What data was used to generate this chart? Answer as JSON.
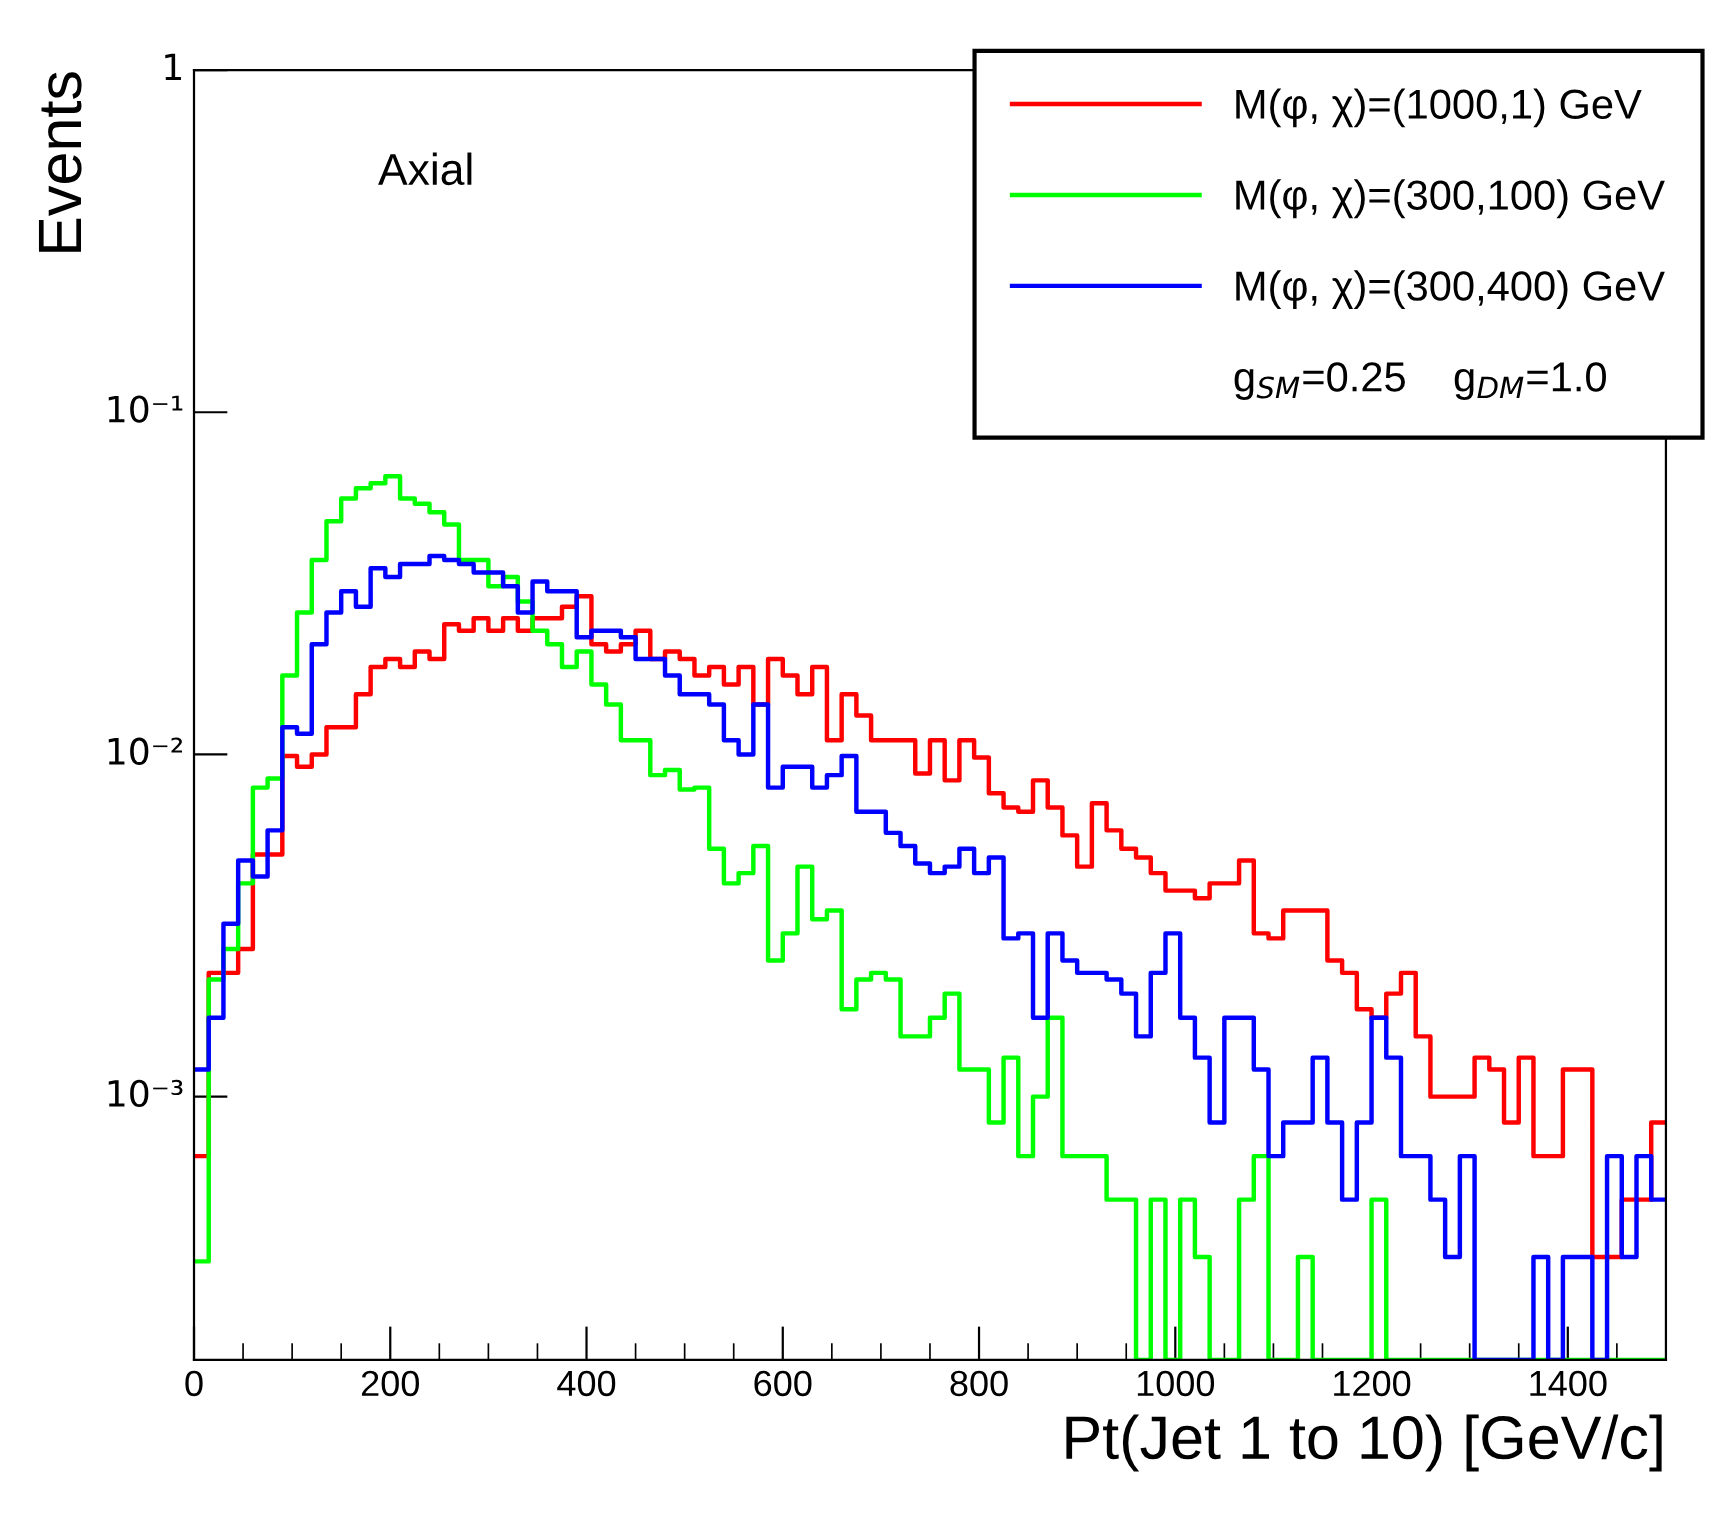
{
  "chart_data": {
    "type": "histogram",
    "xlabel": "Pt(Jet 1 to 10) [GeV/c]",
    "ylabel": "Events",
    "annotations": [
      "Axial",
      "g$_{SM}$=0.25    g$_{DM}$=1.0"
    ],
    "bins": [
      0,
      15,
      30,
      45,
      60,
      75,
      90,
      105,
      120,
      135,
      150,
      165,
      180,
      195,
      210,
      225,
      240,
      255,
      270,
      285,
      300,
      315,
      330,
      345,
      360,
      375,
      390,
      405,
      420,
      435,
      450,
      465,
      480,
      495,
      510,
      525,
      540,
      555,
      570,
      585,
      600,
      615,
      630,
      645,
      660,
      675,
      690,
      705,
      720,
      735,
      750,
      765,
      780,
      795,
      810,
      825,
      840,
      855,
      870,
      885,
      900,
      915,
      930,
      945,
      960,
      975,
      990,
      1005,
      1020,
      1035,
      1050,
      1065,
      1080,
      1095,
      1110,
      1125,
      1140,
      1155,
      1170,
      1185,
      1200,
      1215,
      1230,
      1245,
      1260,
      1275,
      1290,
      1305,
      1320,
      1335,
      1350,
      1365,
      1380,
      1395,
      1410,
      1425,
      1440,
      1455,
      1470,
      1485,
      1500
    ],
    "series": [
      {
        "name": "M(φ, χ)=(1000,1) GeV",
        "color": "#ff0000",
        "values": [
          0.00067,
          0.0023,
          0.0023,
          0.0027,
          0.0051,
          0.0051,
          0.0099,
          0.0092,
          0.01,
          0.012,
          0.012,
          0.015,
          0.018,
          0.019,
          0.018,
          0.02,
          0.019,
          0.024,
          0.023,
          0.025,
          0.023,
          0.025,
          0.023,
          0.025,
          0.025,
          0.027,
          0.029,
          0.021,
          0.02,
          0.021,
          0.023,
          0.019,
          0.02,
          0.019,
          0.017,
          0.018,
          0.016,
          0.018,
          0.014,
          0.019,
          0.017,
          0.015,
          0.018,
          0.011,
          0.015,
          0.013,
          0.011,
          0.011,
          0.011,
          0.0088,
          0.011,
          0.0084,
          0.011,
          0.0098,
          0.0077,
          0.007,
          0.0068,
          0.0084,
          0.007,
          0.0058,
          0.0047,
          0.0072,
          0.006,
          0.0053,
          0.005,
          0.0045,
          0.004,
          0.004,
          0.0038,
          0.0042,
          0.0042,
          0.0049,
          0.003,
          0.0029,
          0.0035,
          0.0035,
          0.0035,
          0.0025,
          0.0023,
          0.0018,
          0.0017,
          0.002,
          0.0023,
          0.0015,
          0.001,
          0.001,
          0.001,
          0.0013,
          0.0012,
          0.00084,
          0.0013,
          0.00067,
          0.00067,
          0.0012,
          0.0012,
          0.00034,
          0.00034,
          0.0005,
          0.0005,
          0.00084
        ]
      },
      {
        "name": "M(φ, χ)=(300,100) GeV",
        "color": "#00ff00",
        "values": [
          0.00033,
          0.0022,
          0.0027,
          0.0042,
          0.008,
          0.0085,
          0.017,
          0.026,
          0.037,
          0.048,
          0.056,
          0.06,
          0.062,
          0.065,
          0.056,
          0.054,
          0.051,
          0.047,
          0.037,
          0.037,
          0.031,
          0.033,
          0.028,
          0.023,
          0.021,
          0.018,
          0.02,
          0.016,
          0.014,
          0.011,
          0.011,
          0.0087,
          0.009,
          0.0079,
          0.008,
          0.0053,
          0.0042,
          0.0045,
          0.0054,
          0.0025,
          0.003,
          0.0047,
          0.0033,
          0.0035,
          0.0018,
          0.0022,
          0.0023,
          0.0022,
          0.0015,
          0.0015,
          0.0017,
          0.002,
          0.0012,
          0.0012,
          0.00084,
          0.0013,
          0.00067,
          0.001,
          0.0017,
          0.00067,
          0.00067,
          0.00067,
          0.0005,
          0.0005,
          null,
          0.0005,
          null,
          0.0005,
          0.00034,
          null,
          null,
          0.0005,
          0.00067,
          null,
          null,
          0.00034,
          null,
          null,
          null,
          null,
          0.0005,
          null,
          null,
          null,
          null,
          null,
          null,
          null,
          null,
          null,
          null,
          null,
          null,
          null,
          null,
          null,
          null,
          null,
          null,
          null
        ]
      },
      {
        "name": "M(φ, χ)=(300,400) GeV",
        "color": "#0000ff",
        "values": [
          0.0012,
          0.0017,
          0.0032,
          0.0049,
          0.0044,
          0.006,
          0.012,
          0.0115,
          0.021,
          0.026,
          0.03,
          0.027,
          0.035,
          0.033,
          0.036,
          0.036,
          0.038,
          0.037,
          0.036,
          0.034,
          0.034,
          0.031,
          0.026,
          0.032,
          0.03,
          0.03,
          0.022,
          0.023,
          0.023,
          0.022,
          0.019,
          0.019,
          0.017,
          0.015,
          0.015,
          0.014,
          0.011,
          0.01,
          0.014,
          0.008,
          0.0092,
          0.0092,
          0.008,
          0.0087,
          0.0099,
          0.0068,
          0.0068,
          0.0059,
          0.0054,
          0.0048,
          0.0045,
          0.0047,
          0.0053,
          0.0045,
          0.005,
          0.0029,
          0.003,
          0.0017,
          0.003,
          0.0025,
          0.0023,
          0.0023,
          0.0022,
          0.002,
          0.0015,
          0.0023,
          0.003,
          0.0017,
          0.0013,
          0.00084,
          0.0017,
          0.0017,
          0.0012,
          0.00067,
          0.00084,
          0.00084,
          0.0013,
          0.00084,
          0.0005,
          0.00084,
          0.0017,
          0.0013,
          0.00067,
          0.00067,
          0.0005,
          0.00034,
          0.00067,
          null,
          null,
          null,
          null,
          0.00034,
          null,
          0.00034,
          0.00034,
          null,
          0.00067,
          0.00034,
          0.00067,
          0.0005
        ]
      }
    ],
    "xlim": [
      0,
      1500
    ],
    "xticks": [
      0,
      200,
      400,
      600,
      800,
      1000,
      1200,
      1400
    ],
    "log": "y",
    "ylim": [
      0.00017,
      1
    ],
    "yticks": [
      {
        "value": 0.001,
        "label": "10⁻³"
      },
      {
        "value": 0.01,
        "label": "10⁻²"
      },
      {
        "value": 0.1,
        "label": "10⁻¹"
      },
      1
    ],
    "grid": false,
    "legend": "top right"
  }
}
